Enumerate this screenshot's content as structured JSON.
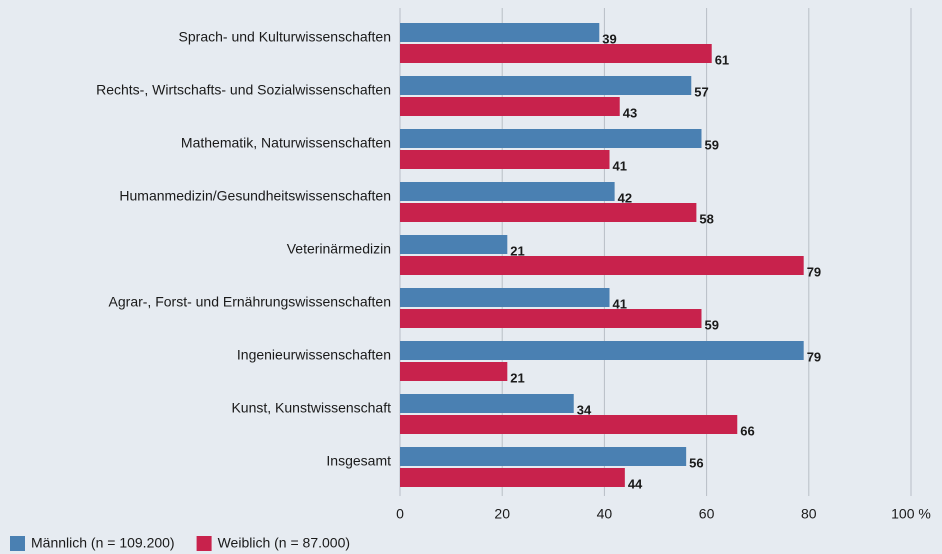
{
  "chart_data": {
    "type": "hbar",
    "categories": [
      "Sprach- und Kulturwissenschaften",
      "Rechts-, Wirtschafts- und Sozialwissenschaften",
      "Mathematik, Naturwissenschaften",
      "Humanmedizin/Gesundheitswissenschaften",
      "Veterinärmedizin",
      "Agrar-, Forst- und Ernährungswissenschaften",
      "Ingenieurwissenschaften",
      "Kunst, Kunstwissenschaft",
      "Insgesamt"
    ],
    "series": [
      {
        "name": "Männlich (n = 109.200)",
        "color": "#4a80b2",
        "values": [
          39,
          57,
          59,
          42,
          21,
          41,
          79,
          34,
          56
        ]
      },
      {
        "name": "Weiblich (n = 87.000)",
        "color": "#c8224c",
        "values": [
          61,
          43,
          41,
          58,
          79,
          59,
          21,
          66,
          44
        ]
      }
    ],
    "xlim": [
      0,
      100
    ],
    "xticks": [
      0,
      20,
      40,
      60,
      80,
      {
        "value": 100,
        "label": "100 %"
      }
    ],
    "grid": true,
    "legend": "bottom-left"
  }
}
